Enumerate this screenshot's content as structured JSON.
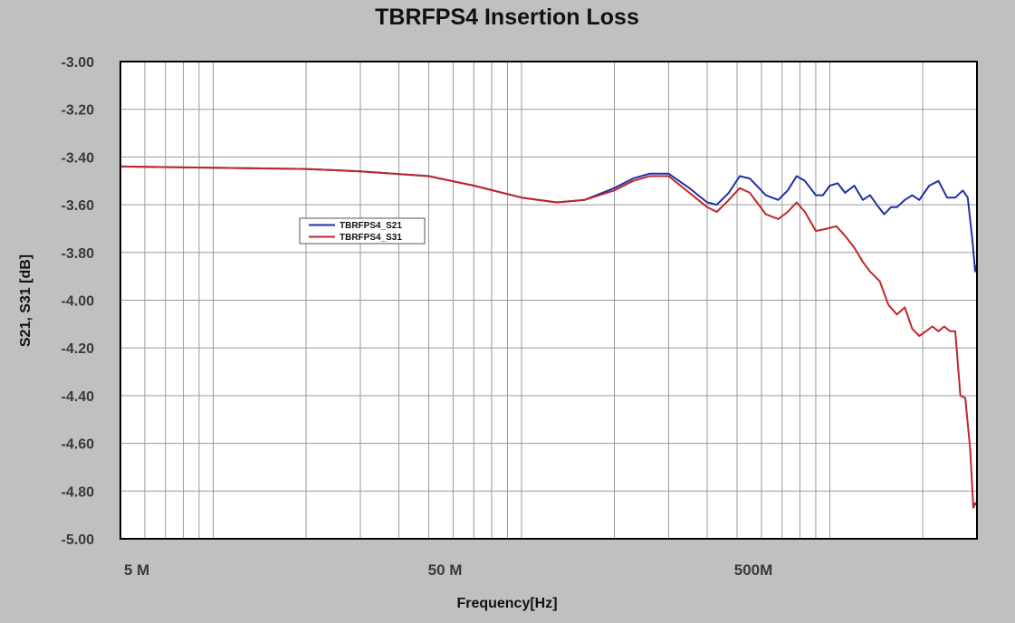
{
  "chart_data": {
    "type": "line",
    "title": "TBRFPS4 Insertion Loss",
    "xlabel": "Frequency[Hz]",
    "ylabel": "S21, S31 [dB]",
    "x_scale": "log",
    "xlim": [
      5000000,
      3000000000
    ],
    "ylim": [
      -5.0,
      -3.0
    ],
    "grid": true,
    "legend_position": "left-middle",
    "x_ticks": [
      {
        "value": 5000000,
        "label": "5  M"
      },
      {
        "value": 50000000,
        "label": "50 M"
      },
      {
        "value": 500000000,
        "label": "500M"
      }
    ],
    "y_ticks": [
      {
        "value": -3.0,
        "label": "-3.00"
      },
      {
        "value": -3.2,
        "label": "-3.20"
      },
      {
        "value": -3.4,
        "label": "-3.40"
      },
      {
        "value": -3.6,
        "label": "-3.60"
      },
      {
        "value": -3.8,
        "label": "-3.80"
      },
      {
        "value": -4.0,
        "label": "-4.00"
      },
      {
        "value": -4.2,
        "label": "-4.20"
      },
      {
        "value": -4.4,
        "label": "-4.40"
      },
      {
        "value": -4.6,
        "label": "-4.60"
      },
      {
        "value": -4.8,
        "label": "-4.80"
      },
      {
        "value": -5.0,
        "label": "-5.00"
      }
    ],
    "series": [
      {
        "name": "TBRFPS4_S21",
        "color": "#1f2fa6",
        "points": [
          [
            5000000,
            -3.44
          ],
          [
            10000000,
            -3.445
          ],
          [
            20000000,
            -3.45
          ],
          [
            30000000,
            -3.46
          ],
          [
            50000000,
            -3.48
          ],
          [
            70000000,
            -3.52
          ],
          [
            100000000,
            -3.57
          ],
          [
            130000000,
            -3.59
          ],
          [
            160000000,
            -3.58
          ],
          [
            200000000,
            -3.53
          ],
          [
            230000000,
            -3.49
          ],
          [
            260000000,
            -3.47
          ],
          [
            300000000,
            -3.47
          ],
          [
            350000000,
            -3.53
          ],
          [
            400000000,
            -3.59
          ],
          [
            430000000,
            -3.6
          ],
          [
            470000000,
            -3.55
          ],
          [
            510000000,
            -3.48
          ],
          [
            550000000,
            -3.49
          ],
          [
            620000000,
            -3.56
          ],
          [
            680000000,
            -3.58
          ],
          [
            730000000,
            -3.54
          ],
          [
            780000000,
            -3.48
          ],
          [
            830000000,
            -3.5
          ],
          [
            900000000,
            -3.56
          ],
          [
            950000000,
            -3.56
          ],
          [
            1000000000,
            -3.52
          ],
          [
            1060000000,
            -3.51
          ],
          [
            1120000000,
            -3.55
          ],
          [
            1200000000,
            -3.52
          ],
          [
            1280000000,
            -3.58
          ],
          [
            1350000000,
            -3.56
          ],
          [
            1420000000,
            -3.6
          ],
          [
            1500000000,
            -3.64
          ],
          [
            1580000000,
            -3.61
          ],
          [
            1650000000,
            -3.61
          ],
          [
            1750000000,
            -3.58
          ],
          [
            1850000000,
            -3.56
          ],
          [
            1950000000,
            -3.58
          ],
          [
            2100000000,
            -3.52
          ],
          [
            2250000000,
            -3.5
          ],
          [
            2400000000,
            -3.57
          ],
          [
            2550000000,
            -3.57
          ],
          [
            2700000000,
            -3.54
          ],
          [
            2800000000,
            -3.57
          ],
          [
            2900000000,
            -3.75
          ],
          [
            2960000000,
            -3.88
          ],
          [
            3000000000,
            -3.85
          ]
        ]
      },
      {
        "name": "TBRFPS4_S31",
        "color": "#c0262a",
        "points": [
          [
            5000000,
            -3.44
          ],
          [
            10000000,
            -3.445
          ],
          [
            20000000,
            -3.45
          ],
          [
            30000000,
            -3.46
          ],
          [
            50000000,
            -3.48
          ],
          [
            70000000,
            -3.52
          ],
          [
            100000000,
            -3.57
          ],
          [
            130000000,
            -3.59
          ],
          [
            160000000,
            -3.58
          ],
          [
            200000000,
            -3.54
          ],
          [
            230000000,
            -3.5
          ],
          [
            260000000,
            -3.48
          ],
          [
            300000000,
            -3.48
          ],
          [
            350000000,
            -3.55
          ],
          [
            400000000,
            -3.61
          ],
          [
            430000000,
            -3.63
          ],
          [
            470000000,
            -3.58
          ],
          [
            510000000,
            -3.53
          ],
          [
            550000000,
            -3.55
          ],
          [
            620000000,
            -3.64
          ],
          [
            680000000,
            -3.66
          ],
          [
            730000000,
            -3.63
          ],
          [
            780000000,
            -3.59
          ],
          [
            830000000,
            -3.63
          ],
          [
            900000000,
            -3.71
          ],
          [
            980000000,
            -3.7
          ],
          [
            1050000000,
            -3.69
          ],
          [
            1120000000,
            -3.73
          ],
          [
            1200000000,
            -3.78
          ],
          [
            1280000000,
            -3.84
          ],
          [
            1350000000,
            -3.88
          ],
          [
            1450000000,
            -3.92
          ],
          [
            1550000000,
            -4.02
          ],
          [
            1650000000,
            -4.06
          ],
          [
            1750000000,
            -4.03
          ],
          [
            1850000000,
            -4.12
          ],
          [
            1950000000,
            -4.15
          ],
          [
            2050000000,
            -4.13
          ],
          [
            2150000000,
            -4.11
          ],
          [
            2250000000,
            -4.13
          ],
          [
            2350000000,
            -4.11
          ],
          [
            2450000000,
            -4.13
          ],
          [
            2550000000,
            -4.13
          ],
          [
            2650000000,
            -4.4
          ],
          [
            2750000000,
            -4.41
          ],
          [
            2850000000,
            -4.62
          ],
          [
            2920000000,
            -4.87
          ],
          [
            2960000000,
            -4.85
          ],
          [
            3000000000,
            -4.86
          ]
        ]
      }
    ]
  }
}
